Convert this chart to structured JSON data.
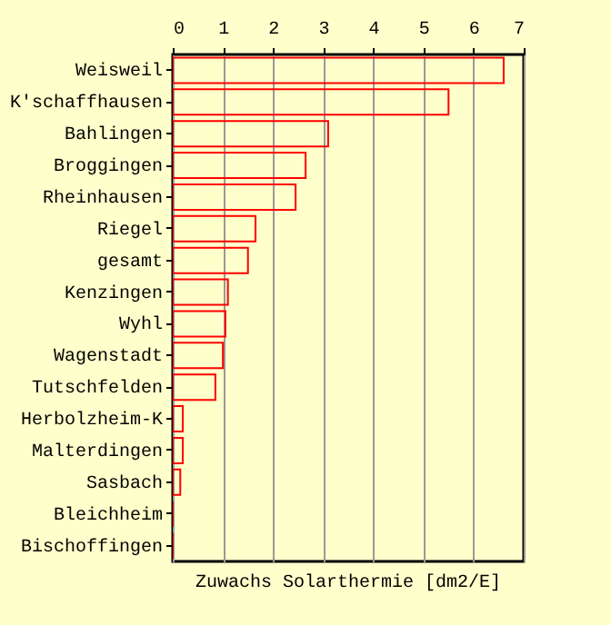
{
  "chart_data": {
    "type": "bar",
    "orientation": "horizontal",
    "xlabel": "Zuwachs Solarthermie [dm2/E]",
    "categories": [
      "Weisweil",
      "K'schaffhausen",
      "Bahlingen",
      "Broggingen",
      "Rheinhausen",
      "Riegel",
      "gesamt",
      "Kenzingen",
      "Wyhl",
      "Wagenstadt",
      "Tutschfelden",
      "Herbolzheim-K",
      "Malterdingen",
      "Sasbach",
      "Bleichheim",
      "Bischoffingen"
    ],
    "values": [
      6.6,
      5.5,
      3.1,
      2.65,
      2.45,
      1.65,
      1.5,
      1.1,
      1.05,
      1.0,
      0.85,
      0.2,
      0.2,
      0.15,
      0,
      0
    ],
    "color": "#ff0000",
    "xlim": [
      0,
      7
    ],
    "xticks": [
      0,
      1,
      2,
      3,
      4,
      5,
      6,
      7
    ],
    "grid": "x"
  }
}
